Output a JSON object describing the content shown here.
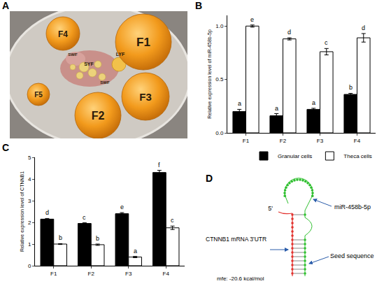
{
  "photo": {
    "panel": "A",
    "labels": [
      "F1",
      "F2",
      "F3",
      "F4",
      "F5",
      "LYF",
      "SYF",
      "SWF",
      "SWF"
    ]
  },
  "chart_data": [
    {
      "panel": "B",
      "type": "bar",
      "categories": [
        "F1",
        "F2",
        "F3",
        "F4"
      ],
      "y_label": "Relative expression level of miR-458b-5p",
      "ylim": [
        0,
        1.1
      ],
      "yticks": [
        {
          "value": 0,
          "label": "0.0"
        },
        {
          "value": 0.5,
          "label": "0.5"
        },
        {
          "value": 1,
          "label": "1.0"
        }
      ],
      "grid": false,
      "legend": "bottom",
      "series": [
        {
          "name": "Granular cells",
          "color": "#000000",
          "values": [
            0.2,
            0.16,
            0.22,
            0.36
          ],
          "errors": [
            0.02,
            0.02,
            0.01,
            0.01
          ],
          "letters": [
            "a",
            "a",
            "a",
            "b"
          ]
        },
        {
          "name": "Theca cells",
          "color": "#ffffff",
          "values": [
            1.0,
            0.88,
            0.76,
            0.89
          ],
          "errors": [
            0.01,
            0.01,
            0.03,
            0.04
          ],
          "letters": [
            "e",
            "d",
            "c",
            "d"
          ]
        }
      ]
    },
    {
      "panel": "C",
      "type": "bar",
      "categories": [
        "F1",
        "F2",
        "F3",
        "F4"
      ],
      "y_label": "Relative expression level of CTNNB1",
      "ylim": [
        0,
        5
      ],
      "yticks": [
        0,
        1,
        2,
        3,
        4,
        5
      ],
      "grid": false,
      "series": [
        {
          "name": "Granular cells",
          "color": "#000000",
          "values": [
            2.15,
            1.95,
            2.4,
            4.3
          ],
          "errors": [
            0.03,
            0.03,
            0.05,
            0.1
          ],
          "letters": [
            "d",
            "c",
            "e",
            "f"
          ]
        },
        {
          "name": "Theca cells",
          "color": "#ffffff",
          "values": [
            1.0,
            0.97,
            0.4,
            1.75
          ],
          "errors": [
            0.02,
            0.03,
            0.03,
            0.08
          ],
          "letters": [
            "b",
            "b",
            "a",
            "c"
          ]
        }
      ]
    }
  ],
  "diagram": {
    "panel": "D",
    "five_prime": "5'",
    "mirna": "miR-458b-5p",
    "target": "CTNNB1 mRNA 3'UTR",
    "seed": "Seed sequence",
    "mfe": "mfe: -20.6 kcal/mol"
  }
}
